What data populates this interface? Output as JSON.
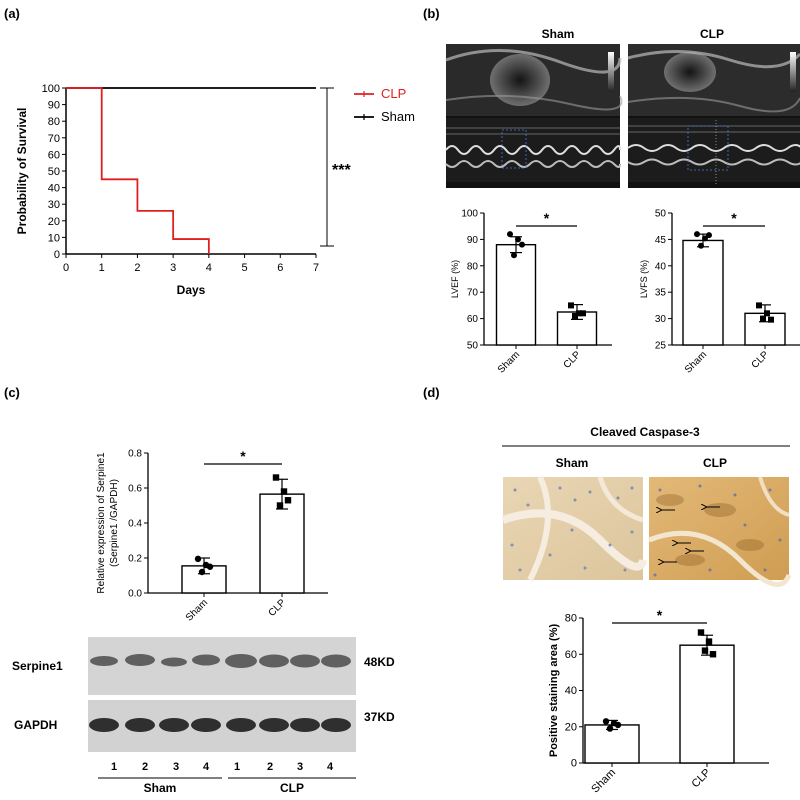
{
  "panels": {
    "a": "(a)",
    "b": "(b)",
    "c": "(c)",
    "d": "(d)"
  },
  "echo": {
    "sham_title": "Sham",
    "clp_title": "CLP"
  },
  "stain": {
    "title": "Cleaved Caspase-3",
    "sham_title": "Sham",
    "clp_title": "CLP"
  },
  "blot": {
    "rows": [
      {
        "label": "Serpine1",
        "size": "48KD"
      },
      {
        "label": "GAPDH",
        "size": "37KD"
      }
    ],
    "lanes": [
      "1",
      "2",
      "3",
      "4",
      "1",
      "2",
      "3",
      "4"
    ],
    "groups": [
      "Sham",
      "CLP"
    ]
  },
  "chart_data": [
    {
      "id": "survival",
      "type": "line",
      "xlabel": "Days",
      "ylabel": "Probability of Survival",
      "xlim": [
        0,
        7
      ],
      "ylim": [
        0,
        100
      ],
      "xticks": [
        "0",
        "1",
        "2",
        "3",
        "4",
        "5",
        "6",
        "7"
      ],
      "yticks": [
        "0",
        "10",
        "20",
        "30",
        "40",
        "50",
        "60",
        "70",
        "80",
        "90",
        "100"
      ],
      "significance": "***",
      "legend_position": "top-right",
      "series": [
        {
          "name": "CLP",
          "color": "#e02020",
          "step": true,
          "x": [
            0,
            1,
            1,
            2,
            2,
            3,
            3,
            4,
            4
          ],
          "y": [
            100,
            100,
            45,
            45,
            26,
            26,
            9,
            9,
            0
          ]
        },
        {
          "name": "Sham",
          "color": "#000000",
          "step": true,
          "x": [
            0,
            7
          ],
          "y": [
            100,
            100
          ]
        }
      ]
    },
    {
      "id": "lvef",
      "type": "bar",
      "categories": [
        "Sham",
        "CLP"
      ],
      "values": [
        88,
        62.5
      ],
      "errors": [
        3,
        2.8
      ],
      "points": [
        [
          92,
          90,
          84,
          88
        ],
        [
          65,
          62,
          61,
          62
        ]
      ],
      "ylabel": "LVEF (%)",
      "ylim": [
        50,
        100
      ],
      "yticks": [
        "50",
        "60",
        "70",
        "80",
        "90",
        "100"
      ],
      "significance": "*"
    },
    {
      "id": "lvfs",
      "type": "bar",
      "categories": [
        "Sham",
        "CLP"
      ],
      "values": [
        44.8,
        31
      ],
      "errors": [
        1.2,
        1.6
      ],
      "points": [
        [
          46,
          45.2,
          43.8,
          45.8
        ],
        [
          32.5,
          31,
          30,
          29.8
        ]
      ],
      "ylabel": "LVFS (%)",
      "ylim": [
        25,
        50
      ],
      "yticks": [
        "25",
        "30",
        "35",
        "40",
        "45",
        "50"
      ],
      "significance": "*"
    },
    {
      "id": "serpine",
      "type": "bar",
      "categories": [
        "Sham",
        "CLP"
      ],
      "values": [
        0.155,
        0.565
      ],
      "errors": [
        0.045,
        0.085
      ],
      "points": [
        [
          0.195,
          0.16,
          0.12,
          0.15
        ],
        [
          0.66,
          0.58,
          0.5,
          0.53
        ]
      ],
      "ylabel": "Relative expression of Serpine1 (Serpine1 /GAPDH)",
      "ylim": [
        0,
        0.8
      ],
      "yticks": [
        "0.0",
        "0.2",
        "0.4",
        "0.6",
        "0.8"
      ],
      "significance": "*"
    },
    {
      "id": "staining",
      "type": "bar",
      "categories": [
        "Sham",
        "CLP"
      ],
      "values": [
        21,
        65
      ],
      "errors": [
        2.5,
        5.5
      ],
      "points": [
        [
          23,
          22,
          19,
          21
        ],
        [
          72,
          67,
          62,
          60
        ]
      ],
      "ylabel": "Positive staining area (%)",
      "ylim": [
        0,
        80
      ],
      "yticks": [
        "0",
        "20",
        "40",
        "60",
        "80"
      ],
      "significance": "*"
    }
  ]
}
